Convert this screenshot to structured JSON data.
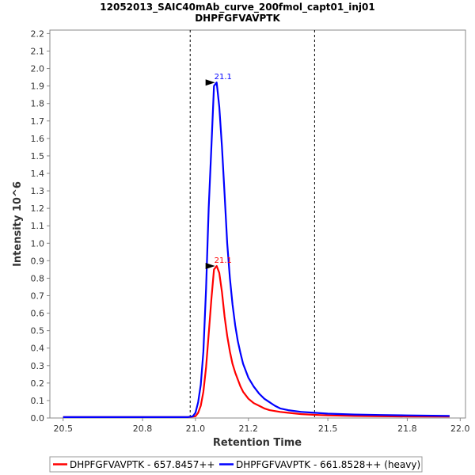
{
  "chart_data": {
    "type": "line",
    "title": "12052013_SAIC40mAb_curve_200fmol_capt01_inj01",
    "subtitle": "DHPFGFVAVPTK",
    "xlabel": "Retention Time",
    "ylabel": "Intensity 10^6",
    "xlim": [
      20.45,
      22.02
    ],
    "ylim": [
      0,
      2.22
    ],
    "x_ticks": [
      20.5,
      20.8,
      21.0,
      21.2,
      21.5,
      21.8,
      22.0
    ],
    "x_tick_labels": [
      "20.5",
      "20.8",
      "21.0",
      "21.2",
      "21.5",
      "21.8",
      "22.0"
    ],
    "y_ticks": [
      0.0,
      0.1,
      0.2,
      0.3,
      0.4,
      0.5,
      0.6,
      0.7,
      0.8,
      0.9,
      1.0,
      1.1,
      1.2,
      1.3,
      1.4,
      1.5,
      1.6,
      1.7,
      1.8,
      1.9,
      2.0,
      2.1,
      2.2
    ],
    "y_tick_labels": [
      "0.0",
      "0.1",
      "0.2",
      "0.3",
      "0.4",
      "0.5",
      "0.6",
      "0.7",
      "0.8",
      "0.9",
      "1.0",
      "1.1",
      "1.2",
      "1.3",
      "1.4",
      "1.5",
      "1.6",
      "1.7",
      "1.8",
      "1.9",
      "2.0",
      "2.1",
      "2.2"
    ],
    "grid": false,
    "boundaries": [
      20.98,
      21.45
    ],
    "legend_position": "bottom",
    "series": [
      {
        "name": "DHPFGFVAVPTK - 657.8457++",
        "color": "#ff0000",
        "x": [
          20.5,
          20.7,
          20.9,
          20.97,
          21.0,
          21.01,
          21.02,
          21.03,
          21.04,
          21.05,
          21.06,
          21.07,
          21.08,
          21.09,
          21.1,
          21.11,
          21.12,
          21.13,
          21.14,
          21.15,
          21.16,
          21.17,
          21.18,
          21.2,
          21.22,
          21.24,
          21.26,
          21.28,
          21.3,
          21.32,
          21.35,
          21.4,
          21.45,
          21.5,
          21.6,
          21.7,
          21.8,
          21.96
        ],
        "y": [
          0.005,
          0.005,
          0.005,
          0.005,
          0.01,
          0.03,
          0.07,
          0.15,
          0.29,
          0.48,
          0.68,
          0.85,
          0.87,
          0.83,
          0.72,
          0.58,
          0.47,
          0.38,
          0.31,
          0.26,
          0.22,
          0.18,
          0.15,
          0.11,
          0.085,
          0.07,
          0.055,
          0.045,
          0.04,
          0.035,
          0.03,
          0.022,
          0.018,
          0.015,
          0.012,
          0.01,
          0.009,
          0.008
        ]
      },
      {
        "name": "DHPFGFVAVPTK - 661.8528++ (heavy)",
        "color": "#0000ff",
        "x": [
          20.5,
          20.7,
          20.9,
          20.97,
          20.99,
          21.0,
          21.01,
          21.02,
          21.03,
          21.04,
          21.05,
          21.06,
          21.07,
          21.08,
          21.09,
          21.1,
          21.11,
          21.12,
          21.13,
          21.14,
          21.15,
          21.16,
          21.17,
          21.18,
          21.2,
          21.22,
          21.24,
          21.26,
          21.28,
          21.3,
          21.32,
          21.35,
          21.4,
          21.45,
          21.5,
          21.6,
          21.7,
          21.8,
          21.96
        ],
        "y": [
          0.005,
          0.005,
          0.005,
          0.005,
          0.01,
          0.03,
          0.09,
          0.19,
          0.38,
          0.74,
          1.2,
          1.55,
          1.9,
          1.92,
          1.78,
          1.55,
          1.28,
          1.0,
          0.8,
          0.65,
          0.53,
          0.44,
          0.37,
          0.31,
          0.23,
          0.18,
          0.14,
          0.11,
          0.09,
          0.07,
          0.055,
          0.045,
          0.035,
          0.03,
          0.025,
          0.02,
          0.017,
          0.015,
          0.012
        ]
      }
    ],
    "annotations": [
      {
        "series": 0,
        "label": "21.1",
        "x": 21.08,
        "y": 0.87
      },
      {
        "series": 1,
        "label": "21.1",
        "x": 21.08,
        "y": 1.92
      }
    ]
  }
}
